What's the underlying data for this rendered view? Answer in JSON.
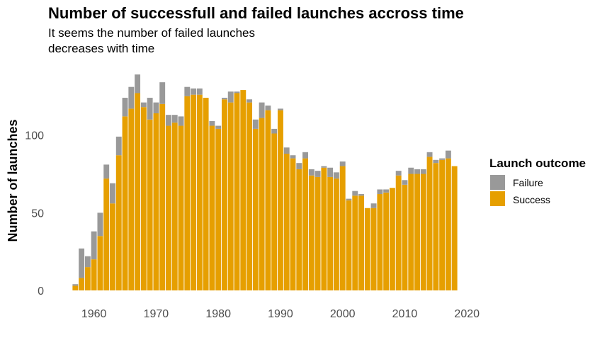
{
  "chart_data": {
    "type": "bar",
    "stacked": true,
    "title": "Number of successfull and failed launches accross time",
    "subtitle_lines": [
      "It seems the number of failed launches",
      "decreases with time"
    ],
    "ylabel": "Number of launches",
    "xlabel": "",
    "xlim": [
      1954,
      2021
    ],
    "ylim": [
      0,
      145
    ],
    "x_ticks": [
      1960,
      1970,
      1980,
      1990,
      2000,
      2010,
      2020
    ],
    "y_ticks": [
      0,
      50,
      100
    ],
    "x_tick_labels": [
      "1960",
      "1970",
      "1980",
      "1990",
      "2000",
      "2010",
      "2020"
    ],
    "y_tick_labels": [
      "0",
      "50",
      "100"
    ],
    "grid": false,
    "legend": {
      "title": "Launch outcome",
      "position": "right",
      "items": [
        {
          "label": "Failure",
          "color": "#999999"
        },
        {
          "label": "Success",
          "color": "#E69F00"
        }
      ]
    },
    "x": [
      1957,
      1958,
      1959,
      1960,
      1961,
      1962,
      1963,
      1964,
      1965,
      1966,
      1967,
      1968,
      1969,
      1970,
      1971,
      1972,
      1973,
      1974,
      1975,
      1976,
      1977,
      1978,
      1979,
      1980,
      1981,
      1982,
      1983,
      1984,
      1985,
      1986,
      1987,
      1988,
      1989,
      1990,
      1991,
      1992,
      1993,
      1994,
      1995,
      1996,
      1997,
      1998,
      1999,
      2000,
      2001,
      2002,
      2003,
      2004,
      2005,
      2006,
      2007,
      2008,
      2009,
      2010,
      2011,
      2012,
      2013,
      2014,
      2015,
      2016,
      2017,
      2018
    ],
    "series": [
      {
        "name": "Success",
        "color": "#E69F00",
        "values": [
          3,
          8,
          15,
          20,
          35,
          72,
          56,
          87,
          112,
          117,
          127,
          118,
          110,
          114,
          120,
          106,
          108,
          106,
          125,
          126,
          126,
          124,
          106,
          104,
          123,
          121,
          127,
          129,
          121,
          104,
          111,
          116,
          101,
          116,
          88,
          85,
          78,
          85,
          74,
          73,
          79,
          73,
          72,
          80,
          58,
          61,
          61,
          53,
          53,
          62,
          63,
          66,
          74,
          68,
          75,
          75,
          75,
          86,
          82,
          84,
          85,
          80
        ]
      },
      {
        "name": "Failure",
        "color": "#999999",
        "values": [
          1,
          19,
          7,
          18,
          15,
          9,
          13,
          12,
          12,
          14,
          12,
          3,
          14,
          7,
          14,
          7,
          5,
          6,
          6,
          4,
          4,
          0,
          3,
          2,
          1,
          7,
          1,
          0,
          2,
          6,
          10,
          3,
          3,
          1,
          4,
          2,
          4,
          4,
          4,
          4,
          1,
          6,
          4,
          3,
          1,
          3,
          1,
          0,
          3,
          3,
          2,
          0,
          3,
          3,
          4,
          3,
          3,
          3,
          2,
          1,
          5,
          0
        ]
      }
    ]
  }
}
